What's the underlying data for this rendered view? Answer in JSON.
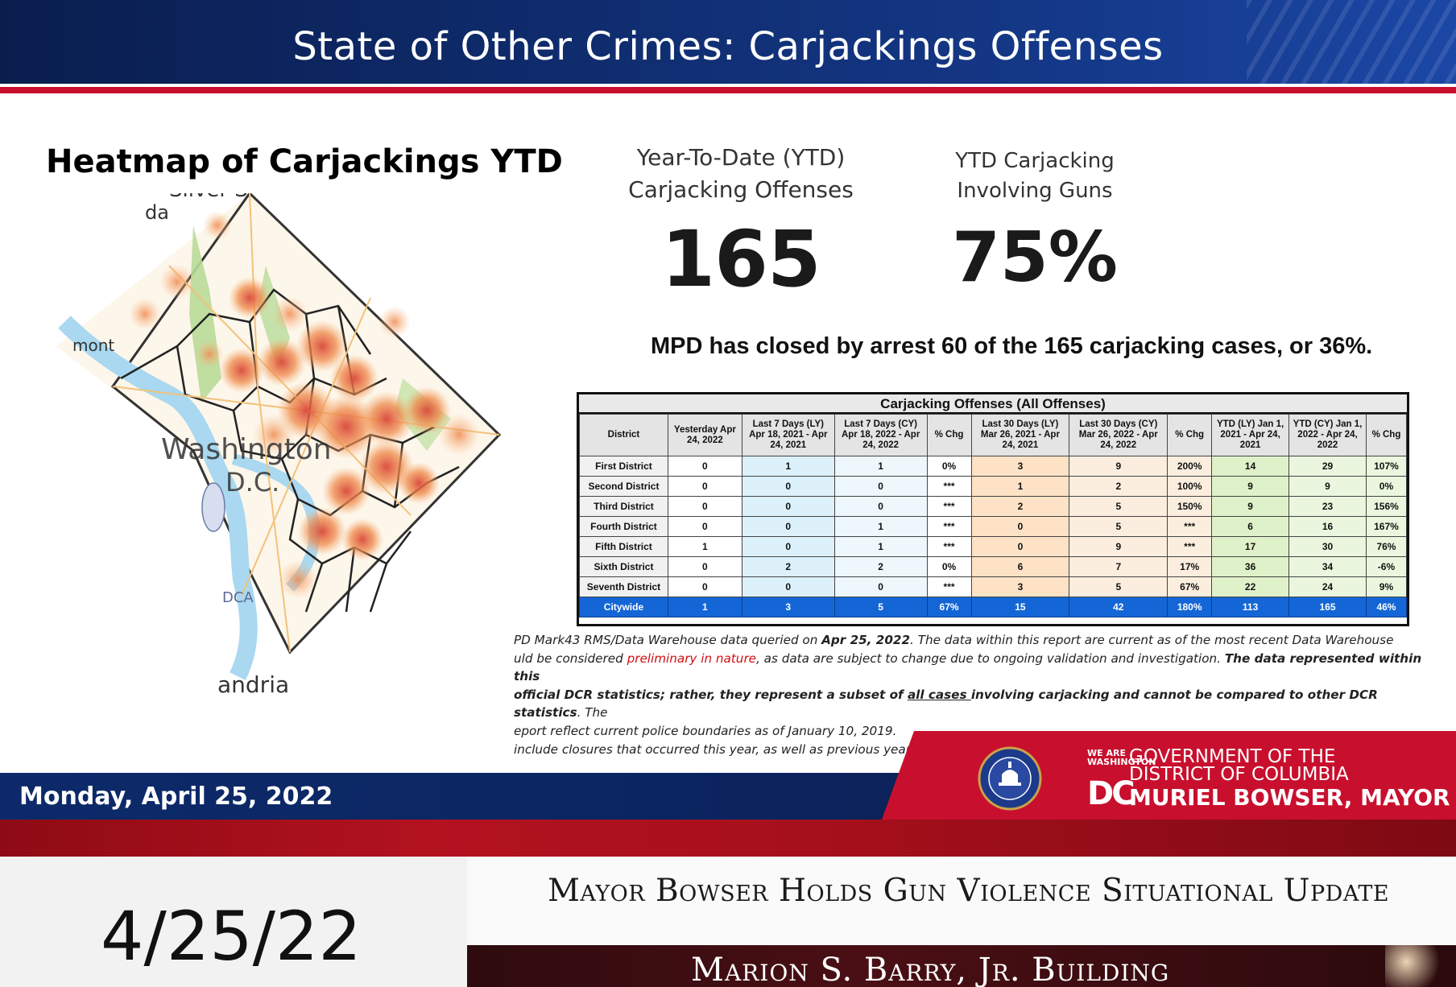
{
  "banner": {
    "title": "State of Other Crimes: Carjackings Offenses"
  },
  "map": {
    "title": "Heatmap of Carjackings YTD",
    "labels": [
      "Silver S",
      "da",
      "mont",
      "Washington",
      "D.C.",
      "DCA",
      "andria"
    ]
  },
  "stats": {
    "ytd_label_1": "Year-To-Date (YTD)",
    "ytd_label_2": "Carjacking Offenses",
    "ytd_value": "165",
    "guns_label_1": "YTD Carjacking",
    "guns_label_2": "Involving Guns",
    "guns_value": "75%"
  },
  "closed_text": "MPD has closed by arrest 60 of the 165 carjacking cases, or 36%.",
  "table": {
    "title": "Carjacking Offenses (All Offenses)",
    "headers": [
      "District",
      "Yesterday Apr 24, 2022",
      "Last 7 Days (LY) Apr 18, 2021 - Apr 24, 2021",
      "Last 7 Days (CY) Apr 18, 2022 - Apr 24, 2022",
      "% Chg",
      "Last 30 Days (LY) Mar 26, 2021 - Apr 24, 2021",
      "Last 30 Days (CY) Mar 26, 2022 - Apr 24, 2022",
      "% Chg",
      "YTD (LY) Jan 1, 2021 - Apr 24, 2021",
      "YTD (CY) Jan 1, 2022 - Apr 24, 2022",
      "% Chg"
    ],
    "rows": [
      [
        "First District",
        "0",
        "1",
        "1",
        "0%",
        "3",
        "9",
        "200%",
        "14",
        "29",
        "107%"
      ],
      [
        "Second District",
        "0",
        "0",
        "0",
        "***",
        "1",
        "2",
        "100%",
        "9",
        "9",
        "0%"
      ],
      [
        "Third District",
        "0",
        "0",
        "0",
        "***",
        "2",
        "5",
        "150%",
        "9",
        "23",
        "156%"
      ],
      [
        "Fourth District",
        "0",
        "0",
        "1",
        "***",
        "0",
        "5",
        "***",
        "6",
        "16",
        "167%"
      ],
      [
        "Fifth District",
        "1",
        "0",
        "1",
        "***",
        "0",
        "9",
        "***",
        "17",
        "30",
        "76%"
      ],
      [
        "Sixth District",
        "0",
        "2",
        "2",
        "0%",
        "6",
        "7",
        "17%",
        "36",
        "34",
        "-6%"
      ],
      [
        "Seventh District",
        "0",
        "0",
        "0",
        "***",
        "3",
        "5",
        "67%",
        "22",
        "24",
        "9%"
      ]
    ],
    "total": [
      "Citywide",
      "1",
      "3",
      "5",
      "67%",
      "15",
      "42",
      "180%",
      "113",
      "165",
      "46%"
    ]
  },
  "footnote": {
    "l1a": "PD Mark43 RMS/Data Warehouse data queried on ",
    "l1b": "Apr 25, 2022",
    "l1c": ". The data within this report are current as of the most recent Data Warehouse",
    "l2a": "uld be considered ",
    "l2b": "preliminary in nature",
    "l2c": ", as data are subject to change due to ongoing validation and investigation. ",
    "l2d": "The data represented within this",
    "l3a": "official DCR statistics; rather, they represent a subset of ",
    "l3b": "all cases ",
    "l3c": "involving carjacking and cannot be compared to other DCR statistics",
    "l3d": ". The",
    "l4": "eport reflect current police boundaries as of January 10, 2019.",
    "l5": "include closures that occurred this year, as well as previous years."
  },
  "date_band": "Monday, April 25, 2022",
  "gov": {
    "we_are": "WE ARE WASHINGTON",
    "dc": "DC",
    "line1": "GOVERNMENT OF THE",
    "line2": "DISTRICT OF COLUMBIA",
    "line3": "MURIEL BOWSER, MAYOR"
  },
  "lower_third": {
    "date": "4/25/22",
    "headline": "Mayor Bowser Holds Gun Violence Situational Update",
    "location": "Marion S. Barry, Jr. Building"
  },
  "colors": {
    "navy": "#0f2c6e",
    "red": "#c8102e",
    "citywide": "#1466d6"
  }
}
